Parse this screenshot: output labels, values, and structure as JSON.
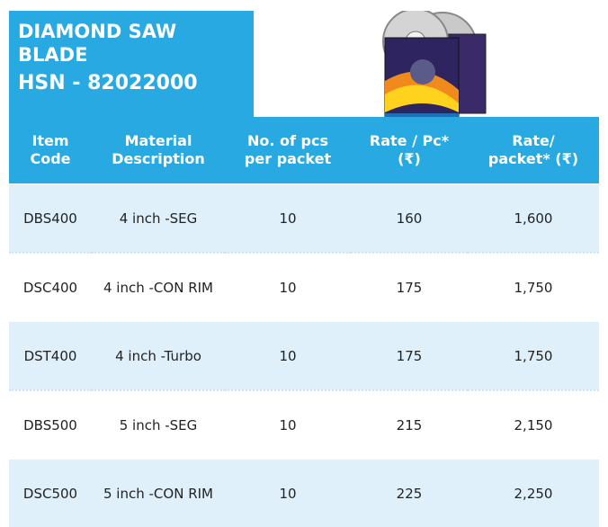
{
  "header": {
    "title": "DIAMOND SAW BLADE",
    "hsn": "HSN - 82022000"
  },
  "table": {
    "columns": [
      [
        "Item",
        "Code"
      ],
      [
        "Material",
        "Description"
      ],
      [
        "No. of pcs",
        "per packet"
      ],
      [
        "Rate / Pc*",
        "(₹)"
      ],
      [
        "Rate/",
        "packet* (₹)"
      ]
    ],
    "rows": [
      [
        "DBS400",
        "4 inch -SEG",
        "10",
        "160",
        "1,600"
      ],
      [
        "DSC400",
        "4 inch -CON RIM",
        "10",
        "175",
        "1,750"
      ],
      [
        "DST400",
        "4 inch -Turbo",
        "10",
        "175",
        "1,750"
      ],
      [
        "DBS500",
        "5 inch -SEG",
        "10",
        "215",
        "2,150"
      ],
      [
        "DSC500",
        "5 inch -CON RIM",
        "10",
        "225",
        "2,250"
      ]
    ]
  }
}
